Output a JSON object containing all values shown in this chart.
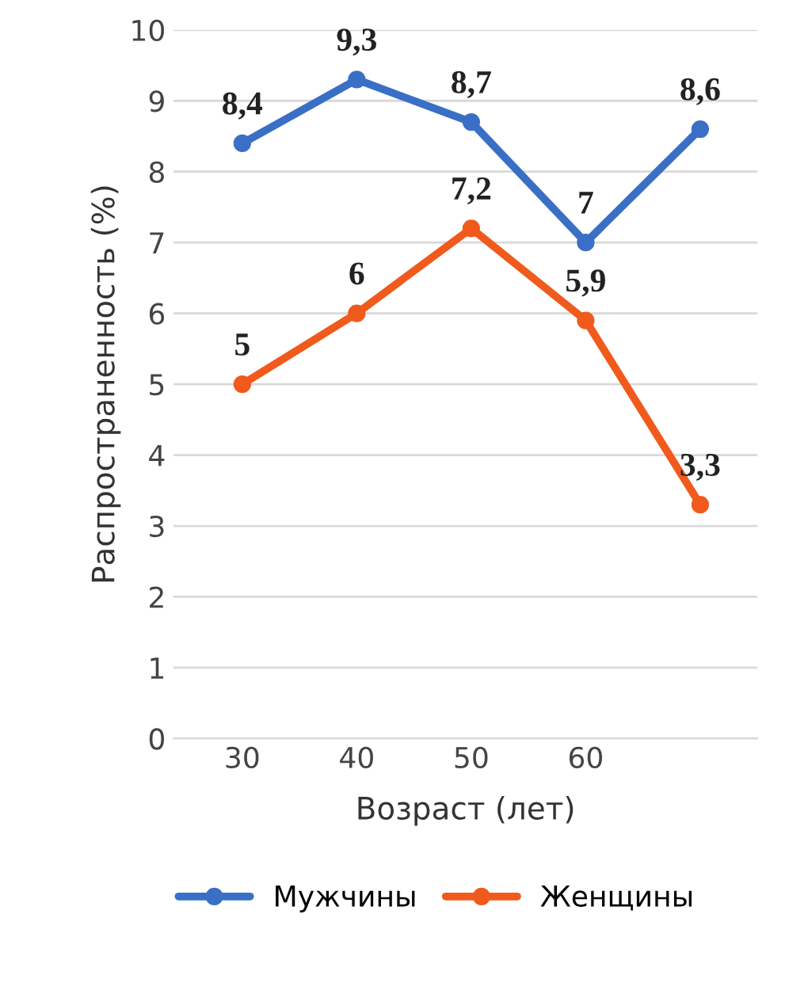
{
  "chart_data": {
    "type": "line",
    "xlabel": "Возраст (лет)",
    "ylabel": "Распространенность (%)",
    "categories": [
      "30",
      "40",
      "50",
      "60",
      null
    ],
    "series": [
      {
        "name": "Мужчины",
        "color": "#3a6fc6",
        "values": [
          8.4,
          9.3,
          8.7,
          7,
          8.6
        ],
        "value_labels": [
          "8,4",
          "9,3",
          "8,7",
          "7",
          "8,6"
        ]
      },
      {
        "name": "Женщины",
        "color": "#f05a1c",
        "values": [
          5,
          6,
          7.2,
          5.9,
          3.3
        ],
        "value_labels": [
          "5",
          "6",
          "7,2",
          "5,9",
          "3,3"
        ]
      }
    ],
    "ylim": [
      0,
      10
    ],
    "yticks": [
      0,
      1,
      2,
      3,
      4,
      5,
      6,
      7,
      8,
      9,
      10
    ],
    "grid": "y",
    "legend": "bottom",
    "marker": "circle",
    "line_style": "solid"
  }
}
